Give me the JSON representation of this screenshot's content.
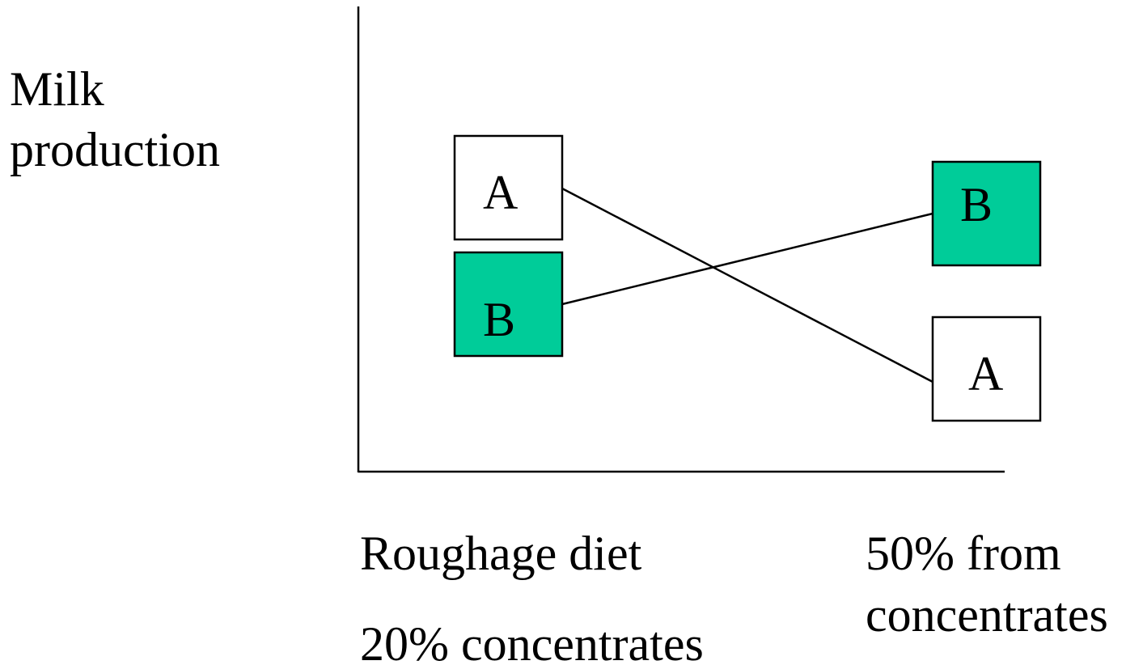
{
  "y_axis_label": [
    "Milk",
    "production"
  ],
  "x_labels": {
    "left": [
      "Roughage diet",
      "20% concentrates"
    ],
    "right": [
      "50% from",
      "concentrates"
    ]
  },
  "nodes": [
    {
      "label": "A"
    },
    {
      "label": "B"
    },
    {
      "label": "B"
    },
    {
      "label": "A"
    }
  ]
}
